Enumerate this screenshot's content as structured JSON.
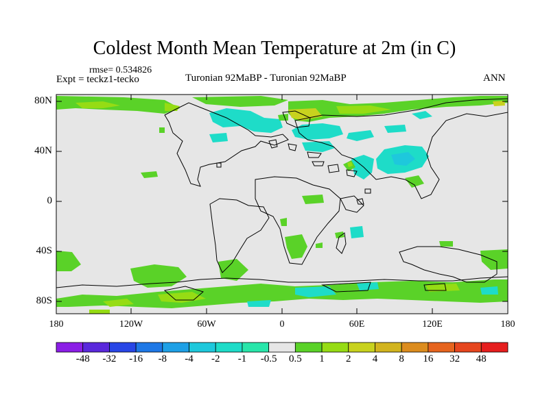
{
  "title": "Coldest Month Mean Temperature at 2m (in C)",
  "rmse_label": "rmse= 0.534826",
  "expt_label": "Expt = teckz1-tecko",
  "comparison_label": "Turonian  92MaBP - Turonian  92MaBP",
  "season_label": "ANN",
  "lat_ticks": [
    "80N",
    "40N",
    "0",
    "40S",
    "80S"
  ],
  "lon_ticks": [
    "180",
    "120W",
    "60W",
    "0",
    "60E",
    "120E",
    "180"
  ],
  "colorbar": {
    "labels": [
      "-48",
      "-32",
      "-16",
      "-8",
      "-4",
      "-2",
      "-1",
      "-0.5",
      "0.5",
      "1",
      "2",
      "4",
      "8",
      "16",
      "32",
      "48"
    ],
    "colors": [
      "#8b1ee6",
      "#5a28dc",
      "#2846e6",
      "#1e78e6",
      "#1ea0e6",
      "#1ec8dc",
      "#1edcc8",
      "#28e6aa",
      "#e6e6e6",
      "#5ad228",
      "#96dc14",
      "#c8d21e",
      "#d2b41e",
      "#dc8c1e",
      "#e6641e",
      "#e6461e",
      "#e61e1e"
    ]
  },
  "map_colors": {
    "background": "#e6e6e6",
    "warm_light": "#5ad228",
    "warm_mid": "#96dc14",
    "warm_strong": "#c8d21e",
    "cool_light": "#1edcc8",
    "cool_mid": "#1ec8dc"
  }
}
